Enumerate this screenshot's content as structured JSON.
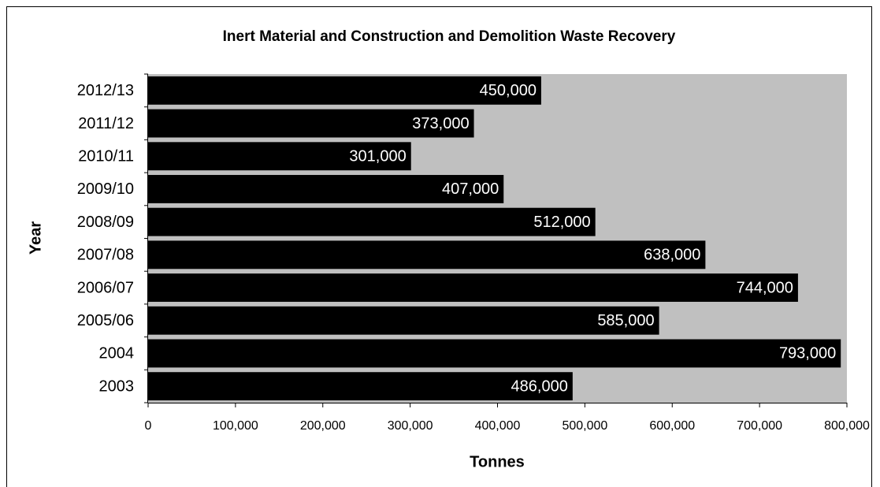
{
  "chart_data": {
    "type": "hbar",
    "title": "Inert Material and Construction and Demolition Waste Recovery",
    "x_label": "Tonnes",
    "y_label": "Year",
    "categories": [
      "2012/13",
      "2011/12",
      "2010/11",
      "2009/10",
      "2008/09",
      "2007/08",
      "2006/07",
      "2005/06",
      "2004",
      "2003"
    ],
    "values": [
      450000,
      373000,
      301000,
      407000,
      512000,
      638000,
      744000,
      585000,
      793000,
      486000
    ],
    "value_labels": [
      "450,000",
      "373,000",
      "301,000",
      "407,000",
      "512,000",
      "638,000",
      "744,000",
      "585,000",
      "793,000",
      "486,000"
    ],
    "color": "#000000",
    "plot_background": "#c0c0c0",
    "xlim": [
      0,
      800000
    ],
    "xticks": [
      0,
      {
        "value": 100000,
        "label": "100,000"
      },
      {
        "value": 200000,
        "label": "200,000"
      },
      {
        "value": 300000,
        "label": "300,000"
      },
      {
        "value": 400000,
        "label": "400,000"
      },
      {
        "value": 500000,
        "label": "500,000"
      },
      {
        "value": 600000,
        "label": "600,000"
      },
      {
        "value": 700000,
        "label": "700,000"
      },
      {
        "value": 800000,
        "label": "800,000"
      }
    ]
  }
}
